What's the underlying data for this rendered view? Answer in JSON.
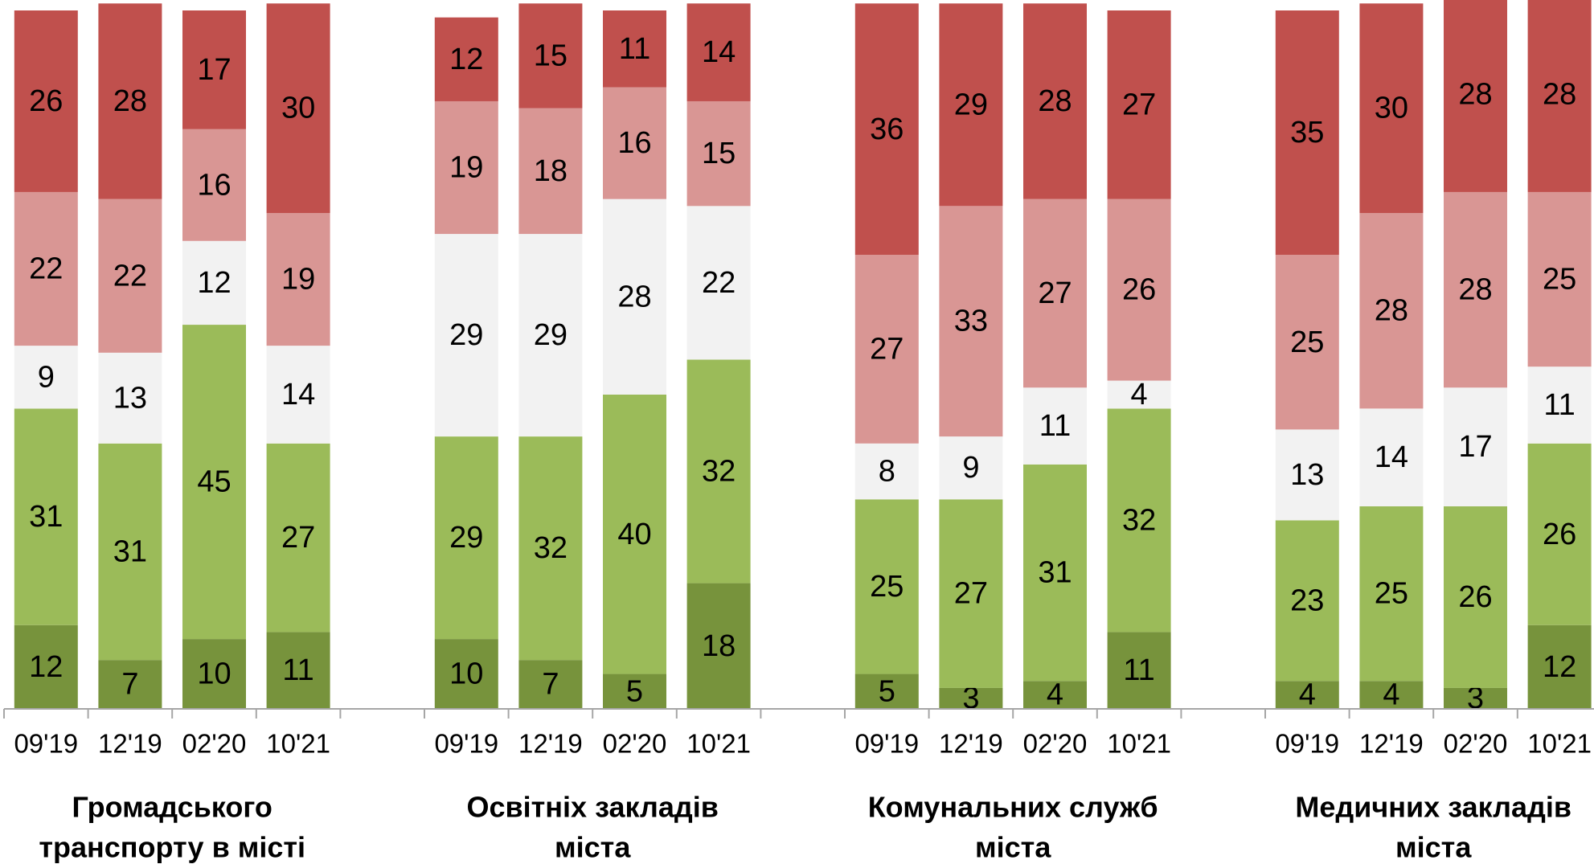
{
  "chart_data": {
    "type": "stacked-bar",
    "categories": [
      "09'19",
      "12'19",
      "02'20",
      "10'21",
      "09'19",
      "12'19",
      "02'20",
      "10'21",
      "09'19",
      "12'19",
      "02'20",
      "10'21",
      "09'19",
      "12'19",
      "02'20",
      "10'21"
    ],
    "groups": [
      [
        "Громадського",
        "транспорту в місті"
      ],
      [
        "Освітніх закладів",
        "міста"
      ],
      [
        "Комунальних служб",
        "міста"
      ],
      [
        "Медичних закладів",
        "міста"
      ]
    ],
    "series": [
      {
        "color": "#77933c",
        "values": [
          12,
          7,
          10,
          11,
          10,
          7,
          5,
          18,
          5,
          3,
          4,
          11,
          4,
          4,
          3,
          12
        ]
      },
      {
        "color": "#9bbb59",
        "values": [
          31,
          31,
          45,
          27,
          29,
          32,
          40,
          32,
          25,
          27,
          31,
          32,
          23,
          25,
          26,
          26
        ]
      },
      {
        "color": "#f2f2f2",
        "values": [
          9,
          13,
          12,
          14,
          29,
          29,
          28,
          22,
          8,
          9,
          11,
          4,
          13,
          14,
          17,
          11
        ]
      },
      {
        "color": "#d99694",
        "values": [
          22,
          22,
          16,
          19,
          19,
          18,
          16,
          15,
          27,
          33,
          27,
          26,
          25,
          28,
          28,
          25
        ]
      },
      {
        "color": "#c0504d",
        "values": [
          26,
          28,
          17,
          30,
          12,
          15,
          11,
          14,
          36,
          29,
          28,
          27,
          35,
          30,
          28,
          28
        ]
      }
    ],
    "ylim": [
      0,
      100
    ]
  }
}
